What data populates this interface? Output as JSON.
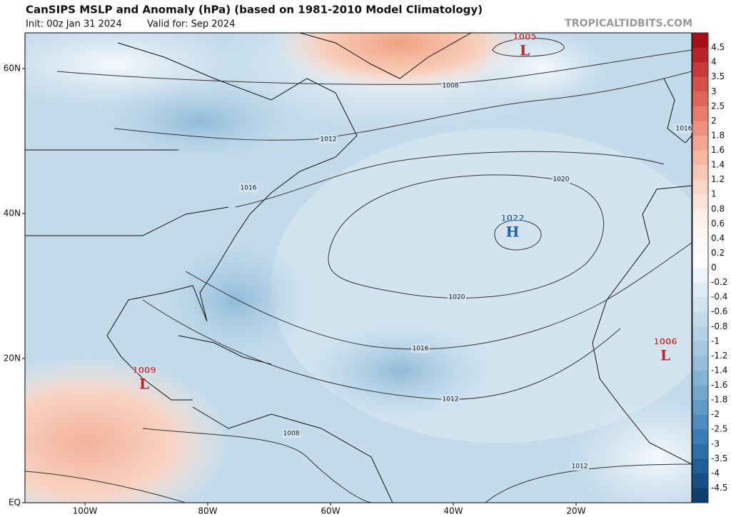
{
  "header": {
    "title": "CanSIPS MSLP and Anomaly (hPa) (based on 1981-2010 Model Climatology)",
    "init": "Init: 00z Jan 31 2024",
    "valid": "Valid for: Sep 2024",
    "source": "TROPICALTIDBITS.COM"
  },
  "map": {
    "lat_labels": [
      "60N",
      "40N",
      "20N",
      "EQ"
    ],
    "lon_labels": [
      "100W",
      "80W",
      "60W",
      "40W",
      "20W"
    ],
    "contour_labels": [
      "1008",
      "1012",
      "1016",
      "1020",
      "1020",
      "1016",
      "1012",
      "1008",
      "1012",
      "1016"
    ],
    "centers": [
      {
        "value": "1005",
        "letter": "L"
      },
      {
        "value": "1022",
        "letter": "H"
      },
      {
        "value": "1006",
        "letter": "L"
      },
      {
        "value": "1009",
        "letter": "L"
      }
    ]
  },
  "colorbar": {
    "labels": [
      4.5,
      4,
      3.5,
      3,
      2.5,
      2,
      1.8,
      1.6,
      1.4,
      1.2,
      1,
      0.8,
      0.6,
      0.4,
      0.2,
      0,
      -0.2,
      -0.4,
      -0.6,
      -0.8,
      -1,
      -1.2,
      -1.4,
      -1.6,
      -1.8,
      -2,
      -2.5,
      -3,
      -3.5,
      -4,
      -4.5
    ],
    "colors": [
      "#a50f15",
      "#b8232a",
      "#c8393a",
      "#d65049",
      "#e0665a",
      "#e97c6c",
      "#ef917f",
      "#f3a590",
      "#f6b7a3",
      "#f8c8b6",
      "#f9d7c8",
      "#fae4d9",
      "#fbefe8",
      "#fcf6f2",
      "#fdfbf9",
      "#ffffff",
      "#eef4f9",
      "#e0ecf5",
      "#d2e4f0",
      "#c4dbeb",
      "#b5d2e6",
      "#a6c8e1",
      "#96bedb",
      "#85b3d5",
      "#73a7ce",
      "#609ac7",
      "#4d8cbf",
      "#3b7db6",
      "#2b6ea9",
      "#1e5f98",
      "#164f84",
      "#0f3f6e"
    ]
  }
}
